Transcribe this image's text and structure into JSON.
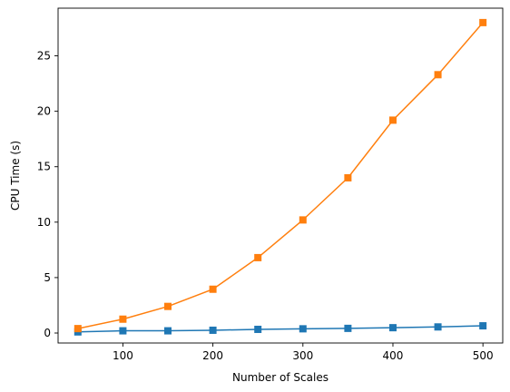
{
  "chart_data": {
    "type": "line",
    "title": "",
    "xlabel": "Number of Scales",
    "ylabel": "CPU Time (s)",
    "x": [
      50,
      100,
      150,
      200,
      250,
      300,
      350,
      400,
      450,
      500
    ],
    "xlim": [
      28,
      522
    ],
    "ylim": [
      -0.9,
      29.3
    ],
    "xticks": [
      100,
      200,
      300,
      400,
      500
    ],
    "yticks": [
      0,
      5,
      10,
      15,
      20,
      25
    ],
    "grid": false,
    "legend": "none",
    "series": [
      {
        "color": "#1f77b4",
        "marker": "square",
        "values": [
          0.1,
          0.2,
          0.2,
          0.25,
          0.33,
          0.38,
          0.42,
          0.48,
          0.55,
          0.65
        ]
      },
      {
        "color": "#ff7f0e",
        "marker": "square",
        "values": [
          0.4,
          1.25,
          2.4,
          3.95,
          6.8,
          10.2,
          14.0,
          19.2,
          23.3,
          28.0
        ]
      }
    ]
  }
}
